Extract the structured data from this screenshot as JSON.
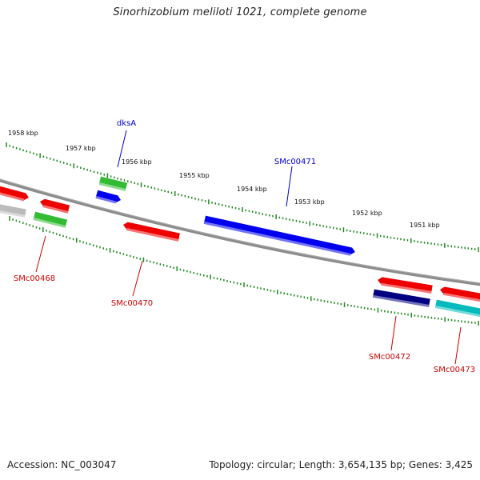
{
  "title": "Sinorhizobium meliloti 1021, complete genome",
  "footer": {
    "accession": "Accession: NC_003047",
    "summary": "Topology: circular; Length: 3,654,135 bp; Genes: 3,425"
  },
  "colors": {
    "backbone": "#8c8c8c",
    "tick": "#228b22",
    "forward_label": "#0000cc",
    "reverse_label": "#cc0000"
  },
  "position_labels": [
    "1958 kbp",
    "1957 kbp",
    "1956 kbp",
    "1955 kbp",
    "1954 kbp",
    "1953 kbp",
    "1952 kbp",
    "1951 kbp"
  ],
  "genes": [
    {
      "label": "dksA",
      "color": "#33bb33",
      "strand": "forward"
    },
    {
      "label": "SMc00471",
      "color": "#0000ee",
      "strand": "forward"
    },
    {
      "label": "SMc00468",
      "color": "#ee0000",
      "strand": "reverse"
    },
    {
      "label": "SMc00470",
      "color": "#ee0000",
      "strand": "reverse"
    },
    {
      "label": "SMc00472",
      "color": "#ee0000",
      "strand": "reverse"
    },
    {
      "label": "SMc00473",
      "color": "#ee0000",
      "strand": "reverse"
    }
  ],
  "other_features": [
    {
      "color": "#ee0000"
    },
    {
      "color": "#bbbbbb"
    },
    {
      "color": "#ee0000"
    },
    {
      "color": "#33bb33"
    },
    {
      "color": "#0000ee"
    },
    {
      "color": "#000080"
    },
    {
      "color": "#ee0000"
    },
    {
      "color": "#00bbbb"
    }
  ]
}
